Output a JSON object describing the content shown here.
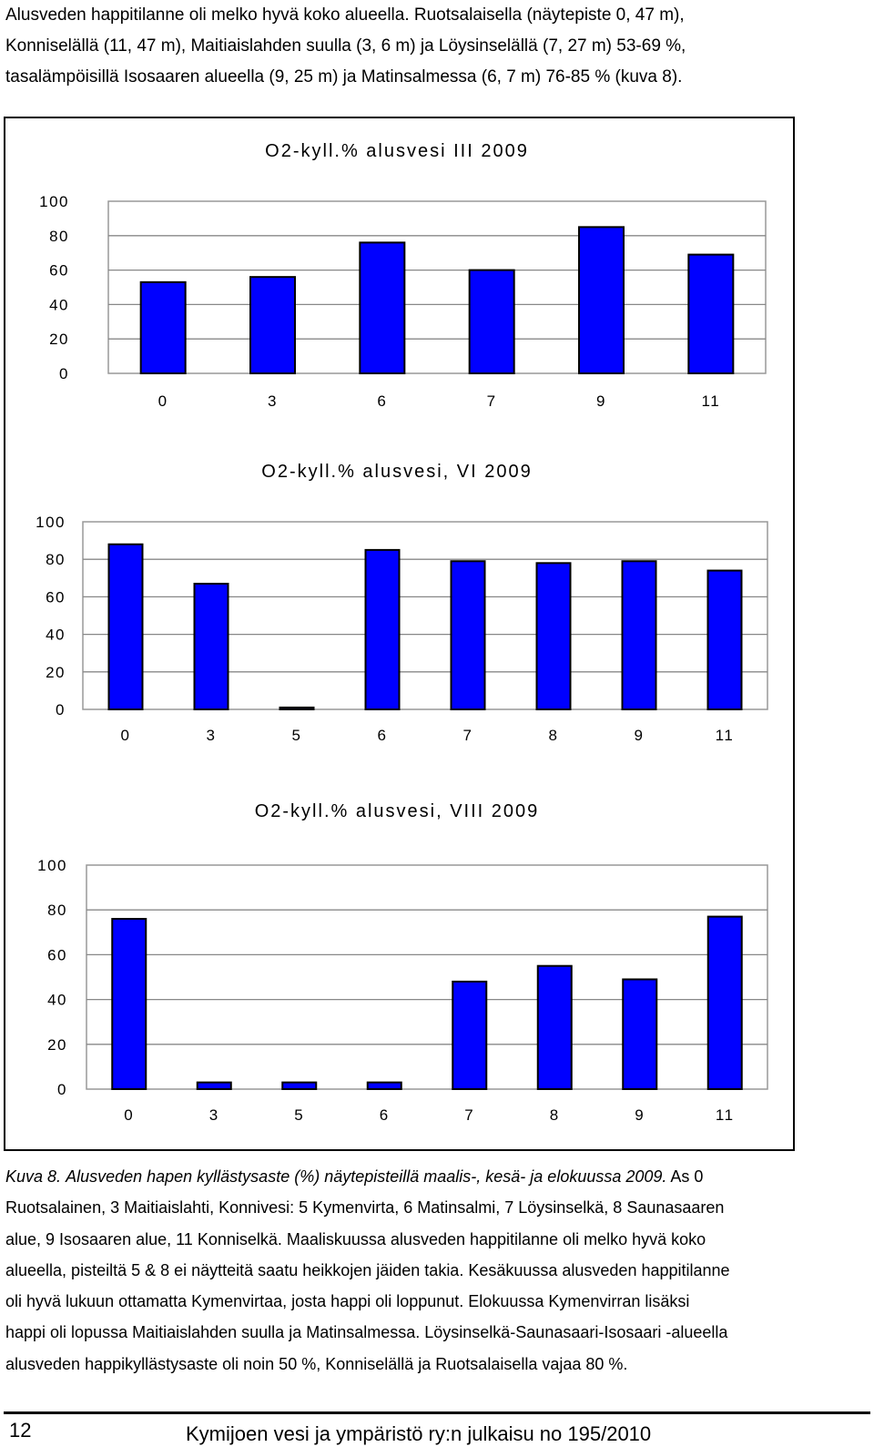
{
  "intro_lines": [
    "Alusveden happitilanne oli melko hyvä koko alueella. Ruotsalaisella (näytepiste 0, 47 m),",
    "Konniselällä (11, 47 m), Maitiaislahden suulla (3, 6 m) ja Löysinselällä (7, 27 m) 53-69 %,",
    "tasalämpöisillä Isosaaren alueella (9, 25 m) ja Matinsalmessa (6, 7 m) 76-85 % (kuva 8)."
  ],
  "charts": [
    {
      "title": "O2-kyll.% alusvesi III 2009",
      "type": "bar",
      "categories": [
        "0",
        "3",
        "6",
        "7",
        "9",
        "11"
      ],
      "values": [
        53,
        56,
        76,
        60,
        85,
        69
      ],
      "ylim": [
        0,
        100
      ],
      "yticks": [
        "0",
        "20",
        "40",
        "60",
        "80",
        "100"
      ],
      "bar_color": "#0000ff"
    },
    {
      "title": "O2-kyll.% alusvesi, VI 2009",
      "type": "bar",
      "categories": [
        "0",
        "3",
        "5",
        "6",
        "7",
        "8",
        "9",
        "11"
      ],
      "values": [
        88,
        67,
        1,
        85,
        79,
        78,
        79,
        74
      ],
      "ylim": [
        0,
        100
      ],
      "yticks": [
        "0",
        "20",
        "40",
        "60",
        "80",
        "100"
      ],
      "bar_color": "#0000ff"
    },
    {
      "title": "O2-kyll.% alusvesi, VIII 2009",
      "type": "bar",
      "categories": [
        "0",
        "3",
        "5",
        "6",
        "7",
        "8",
        "9",
        "11"
      ],
      "values": [
        76,
        3,
        3,
        3,
        48,
        55,
        49,
        77
      ],
      "ylim": [
        0,
        100
      ],
      "yticks": [
        "0",
        "20",
        "40",
        "60",
        "80",
        "100"
      ],
      "bar_color": "#0000ff"
    }
  ],
  "chart_data": [
    {
      "type": "bar",
      "title": "O2-kyll.% alusvesi III 2009",
      "categories": [
        "0",
        "3",
        "6",
        "7",
        "9",
        "11"
      ],
      "values": [
        53,
        56,
        76,
        60,
        85,
        69
      ],
      "ylim": [
        0,
        100
      ]
    },
    {
      "type": "bar",
      "title": "O2-kyll.% alusvesi, VI 2009",
      "categories": [
        "0",
        "3",
        "5",
        "6",
        "7",
        "8",
        "9",
        "11"
      ],
      "values": [
        88,
        67,
        1,
        85,
        79,
        78,
        79,
        74
      ],
      "ylim": [
        0,
        100
      ]
    },
    {
      "type": "bar",
      "title": "O2-kyll.% alusvesi, VIII 2009",
      "categories": [
        "0",
        "3",
        "5",
        "6",
        "7",
        "8",
        "9",
        "11"
      ],
      "values": [
        76,
        3,
        3,
        3,
        48,
        55,
        49,
        77
      ],
      "ylim": [
        0,
        100
      ]
    }
  ],
  "caption": {
    "label": "Kuva 8.",
    "italic_text": "Alusveden hapen kyllästysaste (%) näytepisteillä maalis-, kesä- ja elokuussa 2009.",
    "lines": [
      "As 0",
      "Ruotsalainen, 3 Maitiaislahti, Konnivesi: 5 Kymenvirta, 6 Matinsalmi, 7 Löysinselkä, 8 Saunasaaren",
      "alue, 9 Isosaaren alue, 11 Konniselkä. Maaliskuussa alusveden happitilanne oli melko hyvä koko",
      "alueella, pisteiltä 5 & 8 ei näytteitä saatu heikkojen jäiden takia. Kesäkuussa alusveden happitilanne",
      "oli hyvä lukuun ottamatta Kymenvirtaa, josta happi oli loppunut. Elokuussa Kymenvirran lisäksi",
      "happi oli lopussa Maitiaislahden suulla ja Matinsalmessa. Löysinselkä-Saunasaari-Isosaari -alueella",
      "alusveden happikyllästysaste oli noin 50 %, Konniselällä  ja Ruotsalaisella vajaa 80 %."
    ]
  },
  "footer": {
    "page_number": "12",
    "publication": "Kymijoen vesi ja ympäristö ry:n julkaisu no 195/2010"
  }
}
